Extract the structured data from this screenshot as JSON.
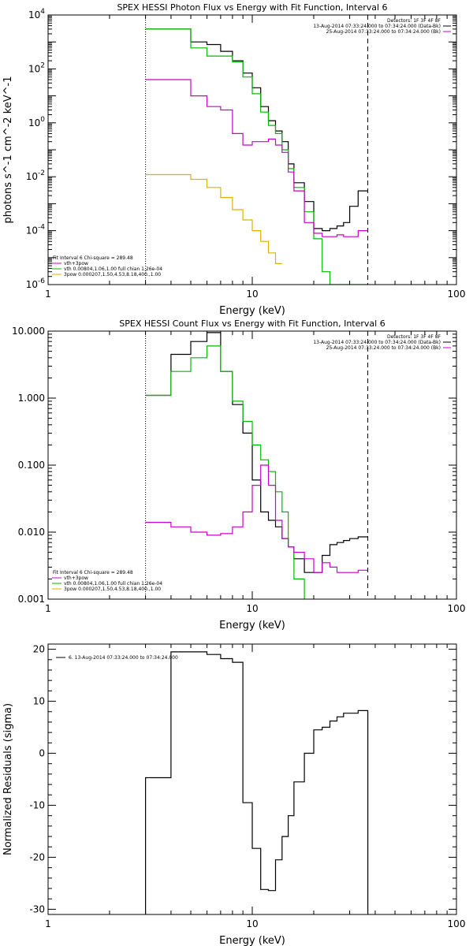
{
  "colors": {
    "data": "#000000",
    "total": "#cc00cc",
    "vth": "#00bb00",
    "bpow": "#e0b000",
    "bk": "#cc00cc"
  },
  "chart_data": [
    {
      "type": "line",
      "title": "SPEX HESSI Photon Flux vs Energy with Fit Function, Interval 6",
      "xlabel": "Energy (keV)",
      "ylabel": "photons s^-1 cm^-2 keV^-1",
      "xscale": "log",
      "yscale": "log",
      "xlim": [
        1,
        100
      ],
      "ylim": [
        1e-06,
        10000
      ],
      "xticks": [
        {
          "v": 1,
          "label": "1"
        },
        {
          "v": 10,
          "label": "10"
        },
        {
          "v": 100,
          "label": "100"
        }
      ],
      "yticks": [
        {
          "v": 1e-06,
          "base": "10",
          "exp": "-6"
        },
        {
          "v": 0.0001,
          "base": "10",
          "exp": "-4"
        },
        {
          "v": 0.01,
          "base": "10",
          "exp": "-2"
        },
        {
          "v": 1,
          "base": "10",
          "exp": "0"
        },
        {
          "v": 100,
          "base": "10",
          "exp": "2"
        },
        {
          "v": 10000,
          "base": "10",
          "exp": "4"
        }
      ],
      "vlines": [
        {
          "x": 3.0,
          "style": "dotted"
        },
        {
          "x": 36.8,
          "style": "dashed"
        }
      ],
      "legend_right": [
        {
          "text": "Detectors: 1F 3F 4F 8F",
          "color": "#000000"
        },
        {
          "text": "13-Aug-2014 07:33:24.000 to 07:34:24.000 (Data-Bk)",
          "color": "#000000"
        },
        {
          "text": "25-Aug-2014 07:33:24.000 to 07:34:24.000 (Bk)",
          "color": "#cc00cc"
        }
      ],
      "legend_left": [
        {
          "text": "Fit Interval 6   Chi-square = 289.48",
          "color": "#000000"
        },
        {
          "text": "vth+3pow",
          "color": "#cc00cc"
        },
        {
          "text": "vth 0.00804,1.06,1.00  full chian 1.26e-04",
          "color": "#00bb00"
        },
        {
          "text": "3pow 0.000207,1.50,4.53,8.18,400.,1.00",
          "color": "#e0b000"
        }
      ],
      "series": [
        {
          "name": "Data-Bk",
          "color": "#000000",
          "edges": [
            3.0,
            4.0,
            5.0,
            6.0,
            7.0,
            8.0,
            9.0,
            10.0,
            11.0,
            12.0,
            13.0,
            14.0,
            15.0,
            16.0,
            18.0,
            20.0,
            22.0,
            24.0,
            26.0,
            28.0,
            30.0,
            33.0,
            36.8
          ],
          "y": [
            3000,
            3000,
            1000,
            800,
            450,
            200,
            70,
            20,
            4,
            1.2,
            0.5,
            0.2,
            0.03,
            0.006,
            0.0012,
            0.00012,
            0.0001,
            0.00012,
            0.00015,
            0.0002,
            0.0008,
            0.003
          ]
        },
        {
          "name": "vth+3pow",
          "color": "#00bb00",
          "edges": [
            3.0,
            4.0,
            5.0,
            6.0,
            7.0,
            8.0,
            9.0,
            10.0,
            11.0,
            12.0,
            13.0,
            14.0,
            15.0,
            16.0,
            18.0,
            20.0,
            22.0,
            24.0,
            26.0,
            28.0,
            30.0,
            33.0,
            36.8
          ],
          "y": [
            3000,
            3000,
            600,
            300,
            300,
            180,
            50,
            12,
            2.5,
            0.8,
            0.4,
            0.1,
            0.02,
            0.004,
            0.0005,
            5e-05,
            3e-06,
            1e-06,
            1e-06,
            1e-06,
            1e-06,
            1e-06
          ]
        },
        {
          "name": "Bk",
          "color": "#cc00cc",
          "edges": [
            3.0,
            4.0,
            5.0,
            6.0,
            7.0,
            8.0,
            9.0,
            10.0,
            11.0,
            12.0,
            13.0,
            14.0,
            15.0,
            16.0,
            18.0,
            20.0,
            22.0,
            24.0,
            26.0,
            28.0,
            30.0,
            33.0,
            36.8
          ],
          "y": [
            40,
            40,
            10,
            4,
            3,
            0.4,
            0.15,
            0.2,
            0.2,
            0.25,
            0.15,
            0.08,
            0.015,
            0.003,
            0.0002,
            8e-05,
            6e-05,
            6e-05,
            7e-05,
            6e-05,
            6e-05,
            0.0001
          ]
        },
        {
          "name": "3pow",
          "color": "#e0b000",
          "edges": [
            3.0,
            4.0,
            5.0,
            6.0,
            7.0,
            8.0,
            9.0,
            10.0,
            11.0,
            12.0,
            13.0,
            14.0
          ],
          "y": [
            0.012,
            0.012,
            0.008,
            0.004,
            0.0017,
            0.0006,
            0.00025,
            0.0001,
            4e-05,
            1.5e-05,
            6e-06
          ]
        }
      ]
    },
    {
      "type": "line",
      "title": "SPEX HESSI Count Flux vs Energy with Fit Function, Interval 6",
      "xlabel": "Energy (keV)",
      "ylabel": "",
      "xscale": "log",
      "yscale": "log",
      "xlim": [
        1,
        100
      ],
      "ylim": [
        0.001,
        10
      ],
      "xticks": [
        {
          "v": 1,
          "label": "1"
        },
        {
          "v": 10,
          "label": "10"
        },
        {
          "v": 100,
          "label": "100"
        }
      ],
      "yticks": [
        {
          "v": 0.001,
          "label": "0.001"
        },
        {
          "v": 0.01,
          "label": "0.010"
        },
        {
          "v": 0.1,
          "label": "0.100"
        },
        {
          "v": 1,
          "label": "1.000"
        },
        {
          "v": 10,
          "label": "10.000"
        }
      ],
      "vlines": [
        {
          "x": 3.0,
          "style": "dotted"
        },
        {
          "x": 36.8,
          "style": "dashed"
        }
      ],
      "legend_right": [
        {
          "text": "Detectors: 1F 3F 4F 8F",
          "color": "#000000"
        },
        {
          "text": "13-Aug-2014 07:33:24.000 to 07:34:24.000 (Data-Bk)",
          "color": "#000000"
        },
        {
          "text": "25-Aug-2014 07:33:24.000 to 07:34:24.000 (Bk)",
          "color": "#cc00cc"
        }
      ],
      "legend_left": [
        {
          "text": "Fit Interval 6   Chi-square = 289.48",
          "color": "#000000"
        },
        {
          "text": "vth+3pow",
          "color": "#cc00cc"
        },
        {
          "text": "vth 0.00804,1.06,1.00  full chian 1.26e-04",
          "color": "#00bb00"
        },
        {
          "text": "3pow 0.000207,1.50,4.53,8.18,400.,1.00",
          "color": "#e0b000"
        }
      ],
      "series": [
        {
          "name": "Data-Bk",
          "color": "#000000",
          "edges": [
            3.0,
            4.0,
            5.0,
            6.0,
            7.0,
            8.0,
            9.0,
            10.0,
            11.0,
            12.0,
            13.0,
            14.0,
            15.0,
            16.0,
            18.0,
            20.0,
            22.0,
            24.0,
            26.0,
            28.0,
            30.0,
            33.0,
            36.8
          ],
          "y": [
            1.1,
            4.5,
            7.0,
            9.5,
            2.5,
            0.8,
            0.3,
            0.06,
            0.02,
            0.015,
            0.012,
            0.008,
            0.006,
            0.004,
            0.0025,
            0.0025,
            0.0045,
            0.0065,
            0.007,
            0.0075,
            0.008,
            0.0085
          ]
        },
        {
          "name": "vth+3pow",
          "color": "#00bb00",
          "edges": [
            3.0,
            4.0,
            5.0,
            6.0,
            7.0,
            8.0,
            9.0,
            10.0,
            11.0,
            12.0,
            13.0,
            14.0,
            15.0,
            16.0,
            18.0,
            20.0
          ],
          "y": [
            1.1,
            2.5,
            4.0,
            6.0,
            2.5,
            0.9,
            0.45,
            0.2,
            0.12,
            0.08,
            0.04,
            0.02,
            0.006,
            0.002,
            0.0008
          ]
        },
        {
          "name": "Bk",
          "color": "#cc00cc",
          "edges": [
            3.0,
            4.0,
            5.0,
            6.0,
            7.0,
            8.0,
            9.0,
            10.0,
            11.0,
            12.0,
            13.0,
            14.0,
            15.0,
            16.0,
            18.0,
            20.0,
            22.0,
            24.0,
            26.0,
            28.0,
            30.0,
            33.0,
            36.8
          ],
          "y": [
            0.014,
            0.012,
            0.01,
            0.009,
            0.0095,
            0.012,
            0.02,
            0.05,
            0.1,
            0.05,
            0.015,
            0.008,
            0.006,
            0.005,
            0.004,
            0.0025,
            0.0035,
            0.003,
            0.0025,
            0.0025,
            0.0025,
            0.0027
          ]
        }
      ]
    },
    {
      "type": "line",
      "title": "",
      "xlabel": "Energy (keV)",
      "ylabel": "Normalized Residuals (sigma)",
      "xscale": "log",
      "yscale": "linear",
      "xlim": [
        1,
        100
      ],
      "ylim": [
        -31,
        21
      ],
      "xticks": [
        {
          "v": 1,
          "label": "1"
        },
        {
          "v": 10,
          "label": "10"
        },
        {
          "v": 100,
          "label": "100"
        }
      ],
      "yticks": [
        {
          "v": -30,
          "label": "-30"
        },
        {
          "v": -20,
          "label": "-20"
        },
        {
          "v": -10,
          "label": "-10"
        },
        {
          "v": 0,
          "label": "0"
        },
        {
          "v": 10,
          "label": "10"
        },
        {
          "v": 20,
          "label": "20"
        }
      ],
      "vlines": [],
      "legend_right": [],
      "legend_left": [
        {
          "text": "6. 13-Aug-2014 07:33:24.000 to 07:34:24.000",
          "color": "#000000"
        }
      ],
      "series": [
        {
          "name": "",
          "color": "#000000",
          "edges": [
            3.0,
            4.0,
            5.0,
            6.0,
            7.0,
            8.0,
            9.0,
            10.0,
            11.0,
            12.0,
            13.0,
            14.0,
            15.0,
            16.0,
            18.0,
            20.0,
            22.0,
            24.0,
            26.0,
            28.0,
            30.0,
            33.0,
            36.8
          ],
          "y": [
            -4.7,
            19.5,
            19.5,
            19.0,
            18.2,
            17.5,
            -9.5,
            -18.3,
            -26.2,
            -26.4,
            -20.5,
            -16.0,
            -12.0,
            -5.5,
            0.0,
            4.5,
            5.0,
            6.2,
            7.0,
            7.7,
            7.7,
            8.2
          ],
          "close_to_axis": true
        }
      ]
    }
  ]
}
